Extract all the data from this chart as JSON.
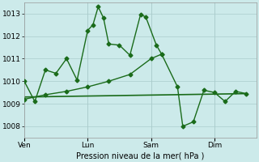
{
  "background_color": "#cceaea",
  "grid_color": "#aacccc",
  "line_color": "#1a6b1a",
  "title": "Pression niveau de la mer( hPa )",
  "ylim": [
    1007.5,
    1013.5
  ],
  "yticks": [
    1008,
    1009,
    1010,
    1011,
    1012,
    1013
  ],
  "day_labels": [
    "Ven",
    "Lun",
    "Sam",
    "Dim"
  ],
  "day_positions": [
    0,
    3,
    6,
    9
  ],
  "xlim": [
    0,
    11
  ],
  "line1_x": [
    0,
    0.5,
    1.0,
    1.5,
    2.0,
    2.5,
    3.0,
    3.25,
    3.5,
    3.75,
    4.0,
    4.5,
    5.0,
    5.5,
    5.75,
    6.25,
    6.5,
    7.25,
    7.5,
    8.0,
    8.5,
    9.0,
    9.5,
    10.0,
    10.5
  ],
  "line1_y": [
    1010.0,
    1009.1,
    1010.5,
    1010.35,
    1011.0,
    1010.05,
    1012.25,
    1012.5,
    1013.3,
    1012.8,
    1011.65,
    1011.6,
    1011.15,
    1012.95,
    1012.85,
    1011.6,
    1011.2,
    1009.75,
    1008.0,
    1008.2,
    1009.6,
    1009.5,
    1009.1,
    1009.55,
    1009.45
  ],
  "line2_x": [
    0,
    1,
    2,
    3,
    4,
    5,
    6,
    6.5
  ],
  "line2_y": [
    1009.2,
    1009.4,
    1009.55,
    1009.75,
    1010.0,
    1010.3,
    1011.0,
    1011.2
  ],
  "line3_x": [
    0,
    10.5
  ],
  "line3_y": [
    1009.3,
    1009.45
  ],
  "marker": "D",
  "markersize": 2.5,
  "linewidth": 1.0,
  "linewidth_flat": 1.2
}
